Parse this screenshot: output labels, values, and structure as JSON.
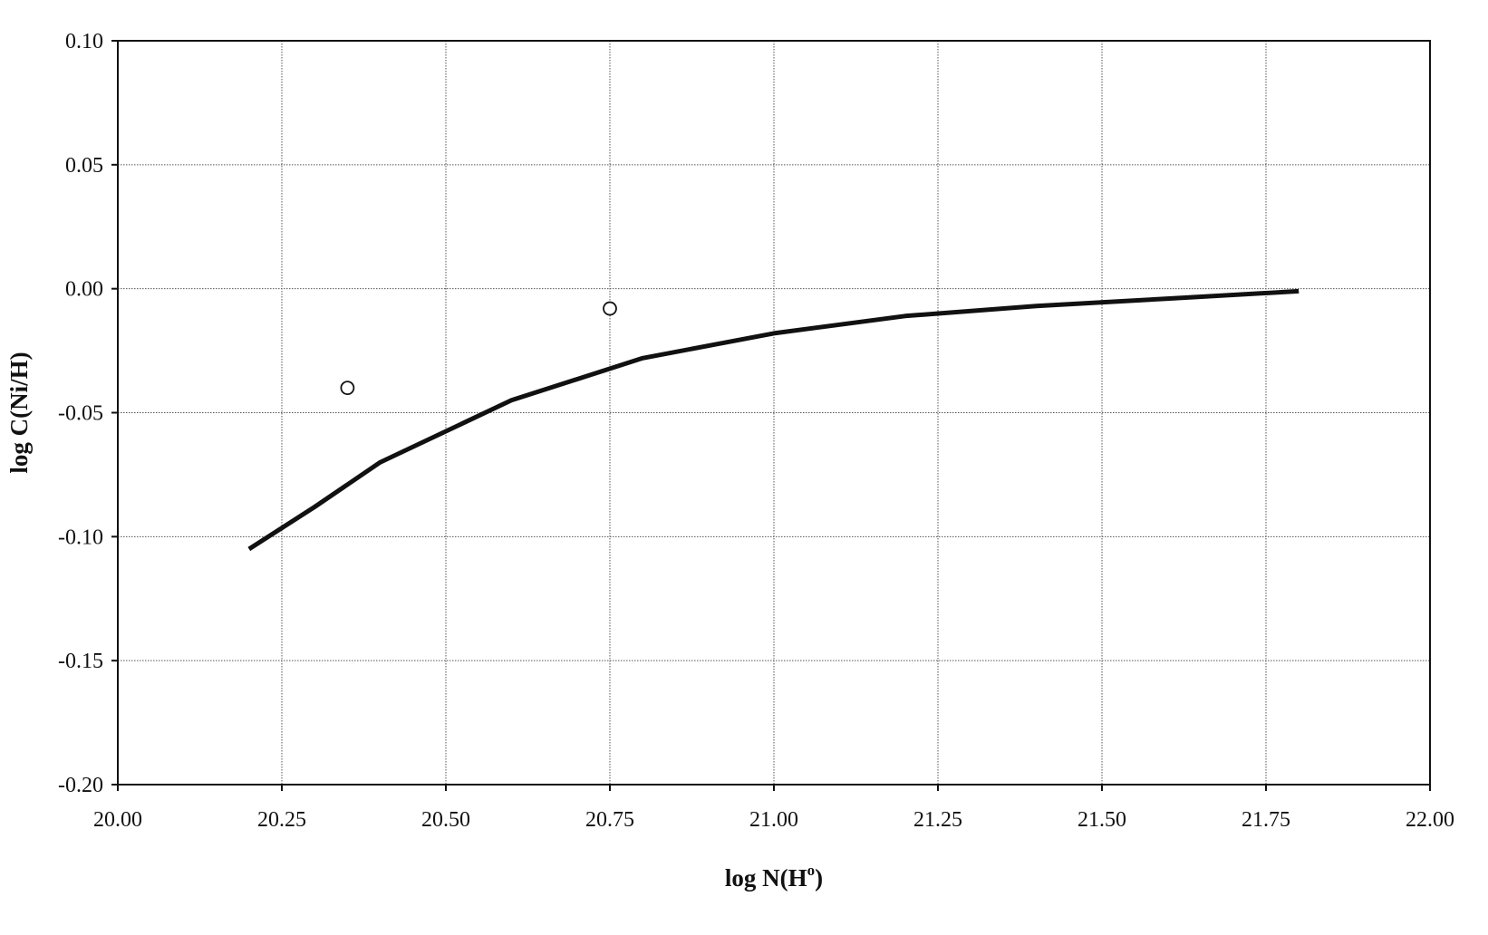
{
  "chart_data": {
    "type": "line",
    "xlabel": "log N(H",
    "xlabel_superscript": "o",
    "xlabel_suffix": ")",
    "ylabel": "log C(Ni/H)",
    "xlim": [
      20.0,
      22.0
    ],
    "ylim": [
      -0.2,
      0.1
    ],
    "x_ticks": [
      20.0,
      20.25,
      20.5,
      20.75,
      21.0,
      21.25,
      21.5,
      21.75,
      22.0
    ],
    "y_ticks": [
      0.1,
      0.05,
      0.0,
      -0.05,
      -0.1,
      -0.15,
      -0.2
    ],
    "x_tick_labels": [
      "20.00",
      "20.25",
      "20.50",
      "20.75",
      "21.00",
      "21.25",
      "21.50",
      "21.75",
      "22.00"
    ],
    "y_tick_labels": [
      "0.10",
      "0.05",
      "0.00",
      "-0.05",
      "-0.10",
      "-0.15",
      "-0.20"
    ],
    "grid": true,
    "series": [
      {
        "style": "line",
        "color": "#111111",
        "x": [
          20.2,
          20.3,
          20.4,
          20.6,
          20.8,
          21.0,
          21.2,
          21.4,
          21.6,
          21.8
        ],
        "y": [
          -0.105,
          -0.088,
          -0.07,
          -0.045,
          -0.028,
          -0.018,
          -0.011,
          -0.007,
          -0.004,
          -0.001
        ]
      },
      {
        "style": "markers",
        "marker": "open-circle",
        "color": "#111111",
        "x": [
          20.35,
          20.75
        ],
        "y": [
          -0.04,
          -0.008
        ]
      }
    ]
  }
}
